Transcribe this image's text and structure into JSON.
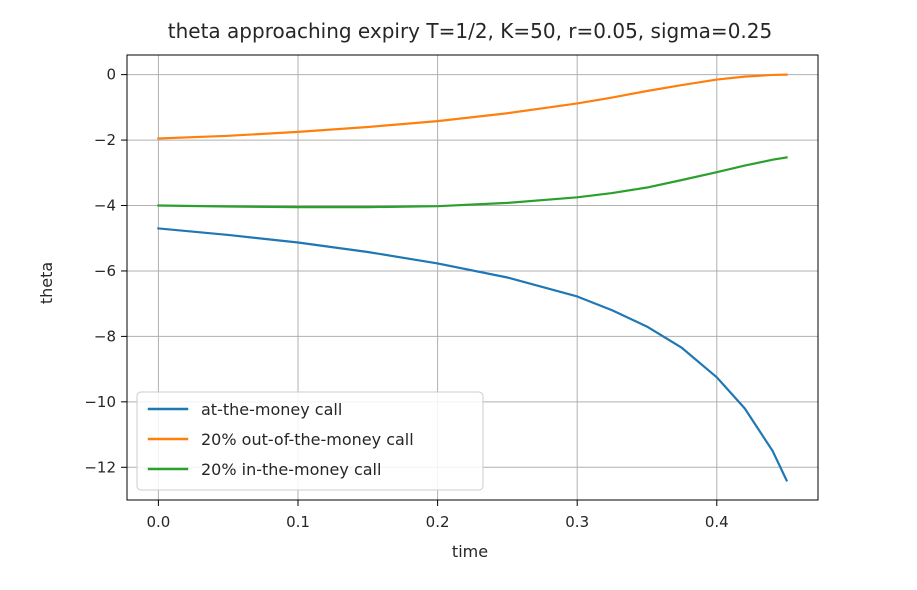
{
  "chart_data": {
    "type": "line",
    "title": "theta approaching expiry T=1/2, K=50, r=0.05, sigma=0.25",
    "xlabel": "time",
    "ylabel": "theta",
    "xlim": [
      -0.0225,
      0.4725
    ],
    "ylim": [
      -13.0,
      0.6
    ],
    "xticks": [
      0.0,
      0.1,
      0.2,
      0.3,
      0.4
    ],
    "xtick_labels": [
      "0.0",
      "0.1",
      "0.2",
      "0.3",
      "0.4"
    ],
    "yticks": [
      0,
      -2,
      -4,
      -6,
      -8,
      -10,
      -12
    ],
    "ytick_labels": [
      "0",
      "−2",
      "−4",
      "−6",
      "−8",
      "−10",
      "−12"
    ],
    "grid": true,
    "legend_position": "lower-left",
    "x": [
      0.0,
      0.05,
      0.1,
      0.15,
      0.2,
      0.25,
      0.3,
      0.325,
      0.35,
      0.375,
      0.4,
      0.42,
      0.44,
      0.45
    ],
    "series": [
      {
        "name": "at-the-money call",
        "color": "#1f77b4",
        "values": [
          -4.7,
          -4.9,
          -5.13,
          -5.42,
          -5.77,
          -6.2,
          -6.78,
          -7.2,
          -7.7,
          -8.35,
          -9.25,
          -10.2,
          -11.5,
          -12.4
        ]
      },
      {
        "name": "20% out-of-the-money call",
        "color": "#ff7f0e",
        "values": [
          -1.95,
          -1.87,
          -1.75,
          -1.6,
          -1.42,
          -1.18,
          -0.88,
          -0.7,
          -0.5,
          -0.32,
          -0.15,
          -0.06,
          -0.01,
          0.0
        ]
      },
      {
        "name": "20% in-the-money call",
        "color": "#2ca02c",
        "values": [
          -4.0,
          -4.03,
          -4.05,
          -4.05,
          -4.02,
          -3.92,
          -3.75,
          -3.62,
          -3.45,
          -3.22,
          -2.98,
          -2.78,
          -2.6,
          -2.53
        ]
      }
    ]
  }
}
